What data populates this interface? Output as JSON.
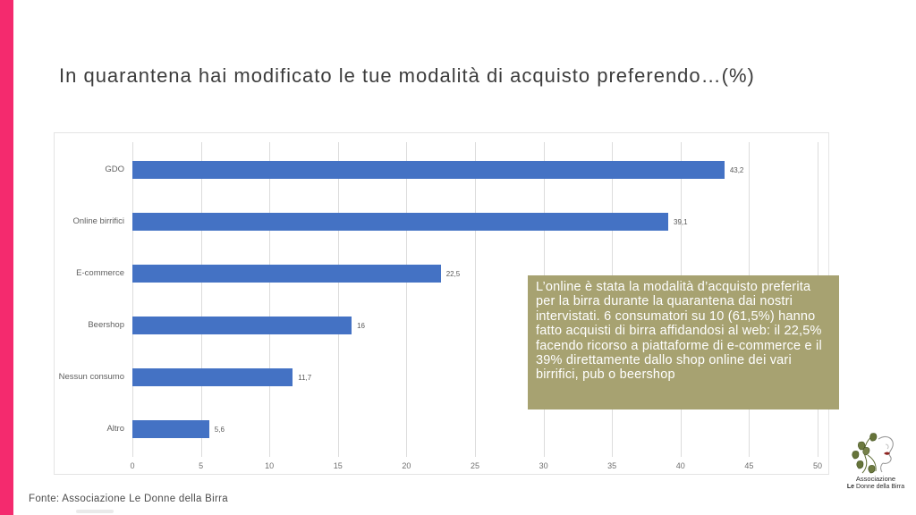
{
  "slide": {
    "title": "In quarantena hai modificato le tue modalità di acquisto preferendo…(%)",
    "footer": "Fonte: Associazione Le Donne della Birra",
    "accent_color": "#f42a6e"
  },
  "chart_data": {
    "type": "bar",
    "orientation": "horizontal",
    "title": "",
    "categories": [
      "GDO",
      "Online birrifici",
      "E-commerce",
      "Beershop",
      "Nessun consumo",
      "Altro"
    ],
    "values": [
      43.2,
      39.1,
      22.5,
      16,
      11.7,
      5.6
    ],
    "value_labels": [
      "43,2",
      "39,1",
      "22,5",
      "16",
      "11,7",
      "5,6"
    ],
    "xlim": [
      0,
      50
    ],
    "x_ticks": [
      0,
      5,
      10,
      15,
      20,
      25,
      30,
      35,
      40,
      45,
      50
    ],
    "bar_color": "#4472c4",
    "grid": true,
    "legend": false
  },
  "annotation": {
    "text": "L’online è stata la modalità d’acquisto preferita per la birra durante la quarantena dai nostri intervistati. 6 consumatori su 10 (61,5%) hanno fatto acquisti di birra affidandosi al web: il 22,5% facendo ricorso a piattaforme di e-commerce e il 39% direttamente dallo shop online dei vari birrifici, pub o beershop",
    "background": "#a7a271",
    "text_color": "#ffffff"
  },
  "logo": {
    "line1": "Associazione",
    "line2_bold": "Le",
    "line2_rest": " Donne della Birra"
  }
}
